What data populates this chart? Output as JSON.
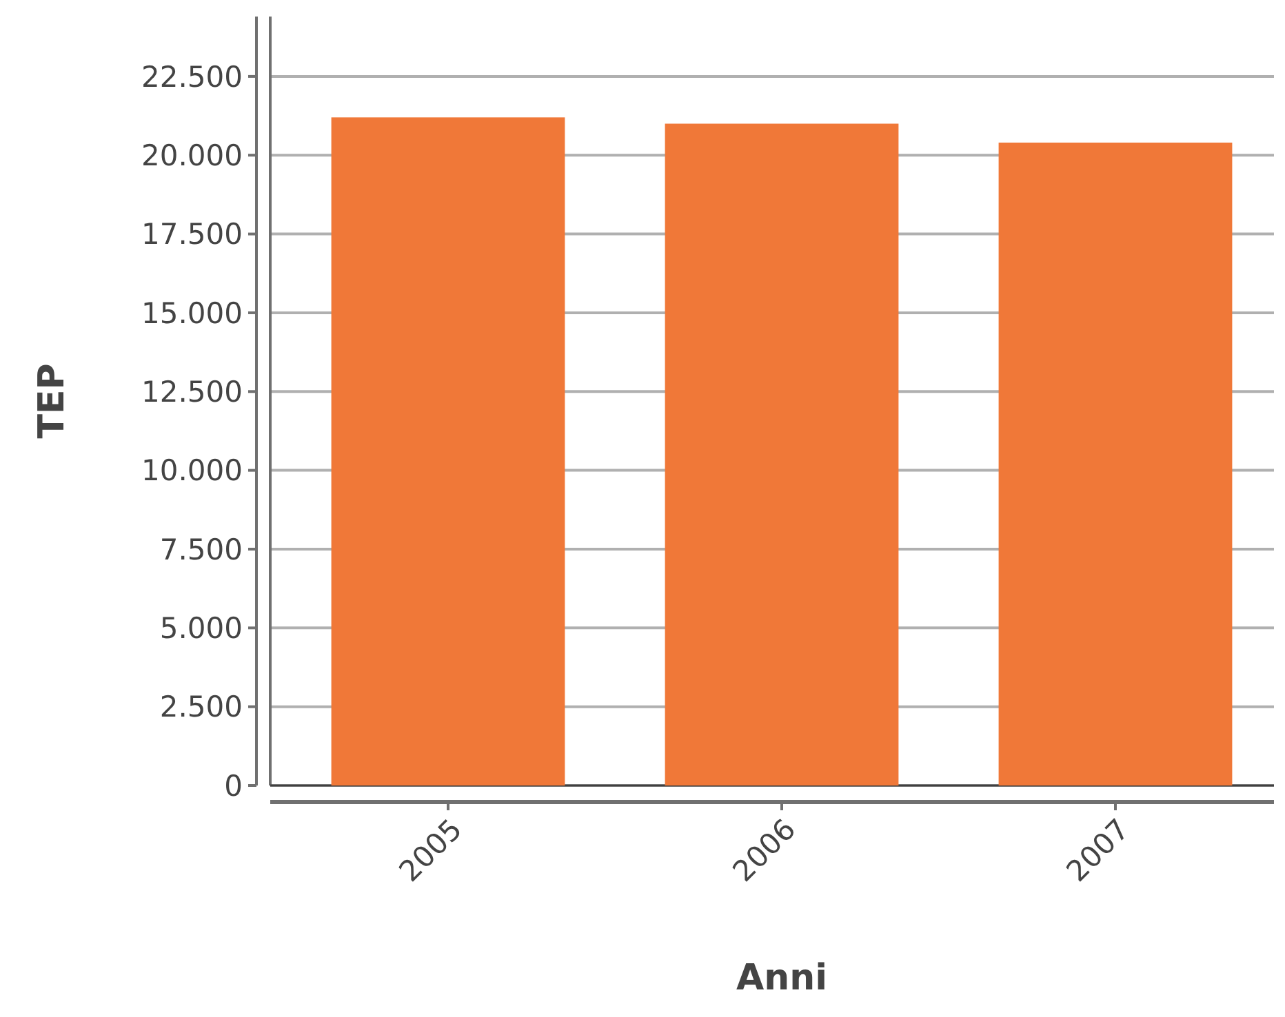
{
  "chart_data": {
    "type": "bar",
    "xlabel": "Anni",
    "ylabel": "TEP",
    "categories": [
      "2005",
      "2006",
      "2007"
    ],
    "values": [
      21200,
      21000,
      20400
    ],
    "color": "#f07838",
    "ylim": [
      0,
      24400
    ],
    "yticks": [
      {
        "value": 0,
        "label": "0"
      },
      {
        "value": 2500,
        "label": "2.500"
      },
      {
        "value": 5000,
        "label": "5.000"
      },
      {
        "value": 7500,
        "label": "7.500"
      },
      {
        "value": 10000,
        "label": "10.000"
      },
      {
        "value": 12500,
        "label": "12.500"
      },
      {
        "value": 15000,
        "label": "15.000"
      },
      {
        "value": 17500,
        "label": "17.500"
      },
      {
        "value": 20000,
        "label": "20.000"
      },
      {
        "value": 22500,
        "label": "22.500"
      }
    ],
    "grid": "y"
  }
}
